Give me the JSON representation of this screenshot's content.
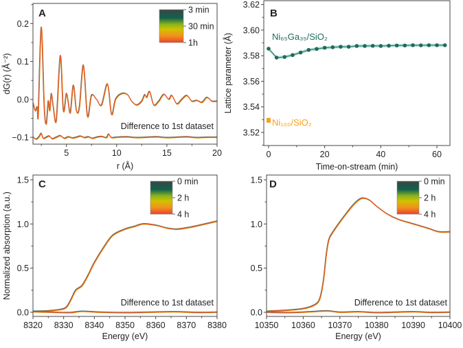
{
  "colors": {
    "teal": "#1d6a5b",
    "band": "#a9d6c9",
    "orange": "#f7a21b",
    "red_orange": "#ef5a2a",
    "yellow": "#c9c000",
    "dark": "#2d4a45"
  },
  "chart_data": [
    {
      "panel_label": "A",
      "type": "line",
      "xlabel": "r (Å)",
      "ylabel": "dG(r) (Å⁻²)",
      "xlim": [
        1.67,
        20
      ],
      "ylim": [
        -0.118,
        0.253
      ],
      "xticks": [
        5,
        10,
        15,
        20
      ],
      "yticks": [
        -0.1,
        0.0,
        0.1,
        0.2
      ],
      "ytick_labels": [
        "−0.1",
        "0.0",
        "0.1",
        "0.2"
      ],
      "colorbar": {
        "labels": [
          "3 min",
          "30 min",
          "1h"
        ]
      },
      "annotation": "Difference to 1st dataset",
      "series": [
        {
          "role": "data",
          "x": [
            1.7,
            1.9,
            2.1,
            2.2,
            2.5,
            2.8,
            3.0,
            3.2,
            3.35,
            3.5,
            3.7,
            4.0,
            4.4,
            4.7,
            5.0,
            5.2,
            5.4,
            5.7,
            6.0,
            6.3,
            6.7,
            7.1,
            7.5,
            8.0,
            8.5,
            9.1,
            9.5,
            9.9,
            10.5,
            11.1,
            11.5,
            12.0,
            12.5,
            12.8,
            13.0,
            13.3,
            13.7,
            14.2,
            14.7,
            15.2,
            15.5,
            16.0,
            16.5,
            17.0,
            17.5,
            18.0,
            18.5,
            19.0,
            19.5,
            20.0
          ],
          "y": [
            -0.01,
            -0.03,
            -0.02,
            -0.04,
            0.19,
            -0.02,
            -0.065,
            -0.005,
            -0.03,
            0.015,
            -0.02,
            -0.055,
            0.115,
            -0.03,
            0.015,
            -0.01,
            -0.035,
            0.037,
            -0.03,
            -0.02,
            0.09,
            -0.045,
            0.01,
            0.0,
            -0.015,
            0.04,
            -0.04,
            0.0,
            0.015,
            0.012,
            -0.005,
            -0.015,
            -0.005,
            0.012,
            0.005,
            0.02,
            -0.015,
            -0.005,
            0.013,
            0.0,
            0.01,
            -0.012,
            0.0,
            0.01,
            -0.005,
            -0.003,
            -0.008,
            0.005,
            -0.005,
            -0.005
          ]
        },
        {
          "role": "difference",
          "x": [
            1.7,
            2.0,
            2.3,
            2.5,
            2.7,
            3.0,
            3.3,
            3.6,
            4.0,
            4.4,
            4.8,
            5.2,
            5.6,
            6.0,
            6.4,
            6.8,
            7.2,
            7.6,
            8.0,
            8.5,
            9.0,
            9.2,
            9.5,
            10,
            11,
            12,
            13,
            14,
            15,
            16,
            17,
            18,
            19,
            20
          ],
          "y": [
            -0.1,
            -0.105,
            -0.098,
            -0.09,
            -0.103,
            -0.1,
            -0.097,
            -0.104,
            -0.1,
            -0.096,
            -0.103,
            -0.099,
            -0.102,
            -0.1,
            -0.097,
            -0.101,
            -0.099,
            -0.103,
            -0.1,
            -0.098,
            -0.101,
            -0.092,
            -0.101,
            -0.1,
            -0.099,
            -0.101,
            -0.1,
            -0.099,
            -0.101,
            -0.1,
            -0.099,
            -0.101,
            -0.1,
            -0.1
          ]
        }
      ]
    },
    {
      "panel_label": "B",
      "type": "scatter",
      "xlabel": "Time-on-stream (min)",
      "ylabel": "Lattice parameter (Å)",
      "xlim": [
        -1.7,
        64.65
      ],
      "ylim": [
        3.5098,
        3.623
      ],
      "xticks": [
        0,
        20,
        40,
        60
      ],
      "yticks": [
        3.52,
        3.54,
        3.56,
        3.58,
        3.6,
        3.62
      ],
      "ytick_labels": [
        "3.52",
        "3.54",
        "3.56",
        "3.58",
        "3.60",
        "3.62"
      ],
      "series": [
        {
          "name": "Ni₆₅Ga₃₅/SiO₂",
          "color": "#1d6a5b",
          "x": [
            0,
            2.86,
            5.71,
            8.57,
            11.43,
            14.29,
            17.14,
            20,
            22.86,
            25.71,
            28.57,
            31.43,
            34.29,
            37.14,
            40,
            42.86,
            45.71,
            48.57,
            51.43,
            54.29,
            57.14,
            60,
            62.86
          ],
          "y": [
            3.5855,
            3.5785,
            3.579,
            3.5805,
            3.5825,
            3.5845,
            3.5853,
            3.5862,
            3.5866,
            3.587,
            3.587,
            3.5876,
            3.5876,
            3.5877,
            3.5876,
            3.5878,
            3.588,
            3.588,
            3.5882,
            3.5881,
            3.5882,
            3.5882,
            3.5882
          ],
          "band": 0.0012
        },
        {
          "name": "Ni₁₀₀/SiO₂",
          "color": "#f7a21b",
          "x": [
            0
          ],
          "y": [
            3.5295
          ]
        }
      ]
    },
    {
      "panel_label": "C",
      "type": "line",
      "xlabel": "Energy (eV)",
      "ylabel": "Normalized absorption (a.u.)",
      "xlim": [
        8320,
        8380
      ],
      "ylim": [
        -0.047,
        1.554
      ],
      "xticks": [
        8320,
        8330,
        8340,
        8350,
        8360,
        8370,
        8380
      ],
      "yticks": [
        0.0,
        0.5,
        1.0,
        1.5
      ],
      "ytick_labels": [
        "0.0",
        "0.5",
        "1.0",
        "1.5"
      ],
      "colorbar": {
        "labels": [
          "0 min",
          "2 h",
          "4 h"
        ]
      },
      "annotation": "Difference to 1st dataset",
      "series": [
        {
          "role": "data",
          "x": [
            8320,
            8325,
            8329,
            8331,
            8332.5,
            8334,
            8336,
            8338,
            8340,
            8343,
            8346,
            8350,
            8353,
            8356,
            8360,
            8364,
            8367,
            8371,
            8375,
            8380
          ],
          "y": [
            0.01,
            0.015,
            0.03,
            0.06,
            0.15,
            0.25,
            0.3,
            0.42,
            0.56,
            0.73,
            0.87,
            0.94,
            0.97,
            1.0,
            0.985,
            0.95,
            0.94,
            0.96,
            0.99,
            1.03
          ]
        },
        {
          "role": "difference",
          "x": [
            8320,
            8326,
            8332,
            8336,
            8342,
            8350,
            8358,
            8366,
            8374,
            8380
          ],
          "y": [
            0.005,
            0.0,
            -0.005,
            0.01,
            0.0,
            -0.005,
            0.0,
            0.005,
            -0.003,
            0.0
          ]
        }
      ]
    },
    {
      "panel_label": "D",
      "type": "line",
      "xlabel": "Energy (eV)",
      "ylabel": "",
      "xlim": [
        10350,
        10400
      ],
      "ylim": [
        -0.047,
        1.554
      ],
      "xticks": [
        10350,
        10360,
        10370,
        10380,
        10390,
        10400
      ],
      "yticks": [
        0.0,
        0.5,
        1.0,
        1.5
      ],
      "ytick_labels": [
        "0.0",
        "0.5",
        "1.0",
        "1.5"
      ],
      "colorbar": {
        "labels": [
          "0 min",
          "2 h",
          "4 h"
        ]
      },
      "annotation": "Difference to 1st dataset",
      "series": [
        {
          "role": "data",
          "x": [
            10350,
            10355,
            10360,
            10363,
            10364.5,
            10365.5,
            10366.3,
            10367,
            10368,
            10370,
            10372,
            10374,
            10376,
            10378,
            10380,
            10383,
            10386,
            10390,
            10394,
            10397,
            10400
          ],
          "y": [
            0.01,
            0.02,
            0.04,
            0.08,
            0.15,
            0.35,
            0.65,
            0.82,
            0.9,
            1.02,
            1.13,
            1.23,
            1.29,
            1.27,
            1.2,
            1.11,
            1.05,
            1.0,
            0.95,
            0.91,
            0.91
          ]
        },
        {
          "role": "difference",
          "x": [
            10350,
            10356,
            10362,
            10366.5,
            10370,
            10375,
            10380,
            10385,
            10390,
            10395,
            10400
          ],
          "y": [
            0.0,
            -0.005,
            0.005,
            0.015,
            0.0,
            0.005,
            -0.005,
            0.0,
            0.005,
            -0.003,
            0.0
          ]
        }
      ]
    }
  ]
}
